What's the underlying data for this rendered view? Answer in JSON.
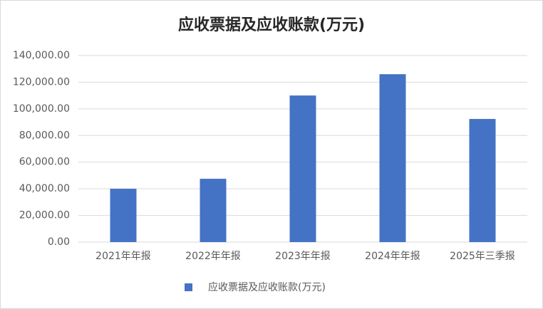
{
  "chart_data": {
    "type": "bar",
    "title": "应收票据及应收账款(万元)",
    "categories": [
      "2021年年报",
      "2022年年报",
      "2023年年报",
      "2024年年报",
      "2025年三季报"
    ],
    "series": [
      {
        "name": "应收票据及应收账款(万元)",
        "color": "#4472c4",
        "values": [
          40000,
          47500,
          110000,
          126000,
          92400
        ]
      }
    ],
    "ylim": [
      0,
      140000
    ],
    "yticks": [
      {
        "value": 0,
        "label": "0.00"
      },
      {
        "value": 20000,
        "label": "20,000.00"
      },
      {
        "value": 40000,
        "label": "40,000.00"
      },
      {
        "value": 60000,
        "label": "60,000.00"
      },
      {
        "value": 80000,
        "label": "80,000.00"
      },
      {
        "value": 100000,
        "label": "100,000.00"
      },
      {
        "value": 120000,
        "label": "120,000.00"
      },
      {
        "value": 140000,
        "label": "140,000.00"
      }
    ],
    "grid": true,
    "legend": "bottom"
  }
}
